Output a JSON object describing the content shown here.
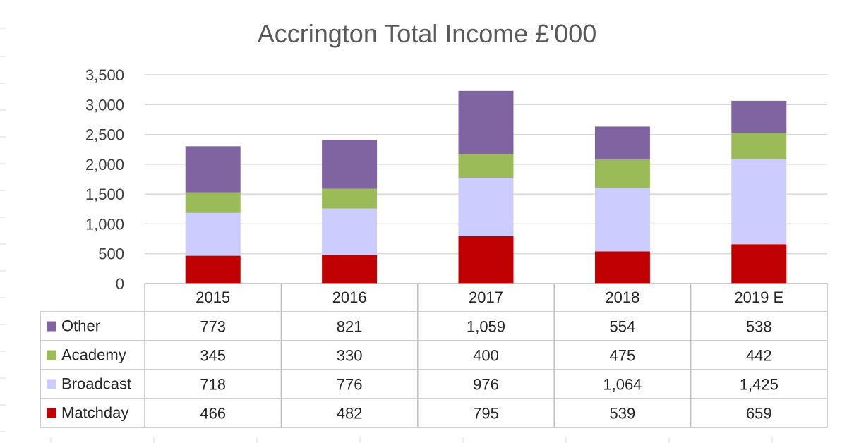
{
  "chart_data": {
    "type": "bar",
    "stacked": true,
    "title": "Accrington Total Income £'000",
    "categories": [
      "2015",
      "2016",
      "2017",
      "2018",
      "2019 E"
    ],
    "series": [
      {
        "name": "Matchday",
        "color": "#C00000",
        "values": [
          466,
          482,
          795,
          539,
          659
        ],
        "labels": [
          "466",
          "482",
          "795",
          "539",
          "659"
        ]
      },
      {
        "name": "Broadcast",
        "color": "#CCCCFF",
        "values": [
          718,
          776,
          976,
          1064,
          1425
        ],
        "labels": [
          "718",
          "776",
          "976",
          "1,064",
          "1,425"
        ]
      },
      {
        "name": "Academy",
        "color": "#9BBB59",
        "values": [
          345,
          330,
          400,
          475,
          442
        ],
        "labels": [
          "345",
          "330",
          "400",
          "475",
          "442"
        ]
      },
      {
        "name": "Other",
        "color": "#8064A2",
        "values": [
          773,
          821,
          1059,
          554,
          538
        ],
        "labels": [
          "773",
          "821",
          "1,059",
          "554",
          "538"
        ]
      }
    ],
    "ylim": [
      0,
      3500
    ],
    "yticks": [
      0,
      500,
      1000,
      1500,
      2000,
      2500,
      3000,
      3500
    ],
    "ytick_labels": [
      "0",
      "500",
      "1,000",
      "1,500",
      "2,000",
      "2,500",
      "3,000",
      "3,500"
    ],
    "grid": true,
    "legend": "data-table"
  }
}
